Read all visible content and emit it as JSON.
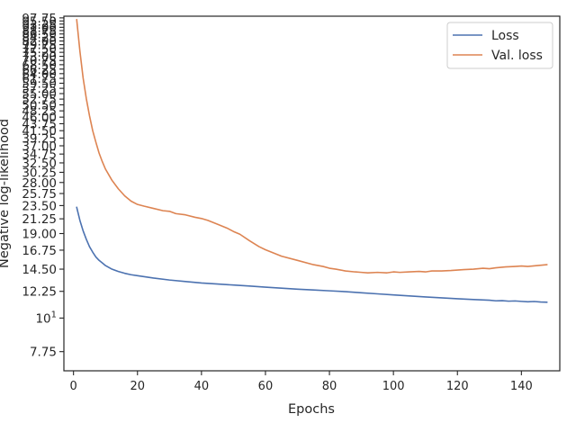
{
  "chart_data": {
    "type": "line",
    "xlabel": "Epochs",
    "ylabel": "Negative log-likelihood",
    "xlim": [
      -3,
      152
    ],
    "ylim": [
      6.7,
      99.0
    ],
    "yscale": "log",
    "legend": "top-right",
    "grid": false,
    "x_ticks": [
      0,
      20,
      40,
      60,
      80,
      100,
      120,
      140
    ],
    "y_ticks": [
      {
        "value": 7.75,
        "label": "7.75"
      },
      {
        "value": 10,
        "label": "10",
        "sup": "1"
      },
      {
        "value": 12.25,
        "label": "12.25"
      },
      {
        "value": 14.5,
        "label": "14.50"
      },
      {
        "value": 16.75,
        "label": "16.75"
      },
      {
        "value": 19.0,
        "label": "19.00"
      },
      {
        "value": 21.25,
        "label": "21.25"
      },
      {
        "value": 23.5,
        "label": "23.50"
      },
      {
        "value": 25.75,
        "label": "25.75"
      },
      {
        "value": 28.0,
        "label": "28.00"
      },
      {
        "value": 30.25,
        "label": "30.25"
      },
      {
        "value": 32.5,
        "label": "32.50"
      },
      {
        "value": 34.75,
        "label": "34.75"
      },
      {
        "value": 37.0,
        "label": "37.00"
      },
      {
        "value": 39.25,
        "label": "39.25"
      },
      {
        "value": 41.5,
        "label": "41.50"
      },
      {
        "value": 43.75,
        "label": "43.75"
      },
      {
        "value": 46.0,
        "label": "46.00"
      },
      {
        "value": 48.25,
        "label": "48.25"
      },
      {
        "value": 50.5,
        "label": "50.50"
      },
      {
        "value": 52.75,
        "label": "52.75"
      },
      {
        "value": 55.0,
        "label": "55.00"
      },
      {
        "value": 57.25,
        "label": "57.25"
      },
      {
        "value": 59.5,
        "label": "59.50"
      },
      {
        "value": 61.75,
        "label": "61.75"
      },
      {
        "value": 64.0,
        "label": "64.00"
      },
      {
        "value": 66.25,
        "label": "66.25"
      },
      {
        "value": 68.5,
        "label": "68.50"
      },
      {
        "value": 70.75,
        "label": "70.75"
      },
      {
        "value": 73.0,
        "label": "73.00"
      },
      {
        "value": 75.25,
        "label": "75.25"
      },
      {
        "value": 77.5,
        "label": "77.50"
      },
      {
        "value": 79.75,
        "label": "79.75"
      },
      {
        "value": 82.0,
        "label": "82.00"
      },
      {
        "value": 84.25,
        "label": "84.25"
      },
      {
        "value": 86.5,
        "label": "86.50"
      },
      {
        "value": 88.75,
        "label": "88.75"
      },
      {
        "value": 91.0,
        "label": "91.00"
      },
      {
        "value": 93.25,
        "label": "93.25"
      },
      {
        "value": 95.5,
        "label": "95.50"
      },
      {
        "value": 97.75,
        "label": "97.75"
      }
    ],
    "series": [
      {
        "name": "Loss",
        "color": "#4c72b0",
        "x": [
          1,
          2,
          3,
          4,
          5,
          6,
          7,
          8,
          9,
          10,
          12,
          14,
          16,
          18,
          20,
          25,
          30,
          35,
          40,
          45,
          50,
          55,
          60,
          65,
          70,
          75,
          80,
          85,
          90,
          95,
          100,
          105,
          110,
          115,
          120,
          125,
          130,
          132,
          134,
          136,
          138,
          140,
          142,
          144,
          146,
          148
        ],
        "y": [
          23.2,
          21.0,
          19.4,
          18.2,
          17.2,
          16.5,
          15.9,
          15.5,
          15.2,
          14.9,
          14.5,
          14.25,
          14.05,
          13.9,
          13.8,
          13.55,
          13.35,
          13.2,
          13.05,
          12.95,
          12.85,
          12.75,
          12.65,
          12.55,
          12.45,
          12.38,
          12.3,
          12.22,
          12.12,
          12.02,
          11.92,
          11.83,
          11.74,
          11.66,
          11.58,
          11.51,
          11.45,
          11.4,
          11.41,
          11.37,
          11.39,
          11.35,
          11.32,
          11.34,
          11.3,
          11.28
        ]
      },
      {
        "name": "Val. loss",
        "color": "#dd8452",
        "x": [
          1,
          2,
          3,
          4,
          5,
          6,
          7,
          8,
          9,
          10,
          12,
          14,
          16,
          18,
          20,
          22,
          25,
          28,
          30,
          32,
          35,
          38,
          40,
          42,
          45,
          48,
          50,
          52,
          55,
          58,
          60,
          65,
          70,
          75,
          78,
          80,
          82,
          85,
          88,
          90,
          92,
          95,
          98,
          100,
          102,
          105,
          108,
          110,
          112,
          115,
          118,
          120,
          122,
          125,
          128,
          130,
          132,
          135,
          138,
          140,
          142,
          145,
          148
        ],
        "y": [
          96.5,
          76.0,
          62.0,
          53.0,
          46.5,
          41.5,
          38.0,
          35.0,
          32.8,
          31.0,
          28.5,
          26.7,
          25.3,
          24.3,
          23.7,
          23.4,
          23.0,
          22.6,
          22.5,
          22.1,
          21.9,
          21.5,
          21.3,
          21.0,
          20.4,
          19.8,
          19.3,
          18.9,
          18.0,
          17.2,
          16.8,
          16.0,
          15.5,
          15.0,
          14.8,
          14.6,
          14.5,
          14.3,
          14.2,
          14.15,
          14.1,
          14.15,
          14.1,
          14.2,
          14.15,
          14.2,
          14.25,
          14.2,
          14.3,
          14.3,
          14.35,
          14.4,
          14.45,
          14.5,
          14.6,
          14.55,
          14.65,
          14.75,
          14.8,
          14.85,
          14.8,
          14.9,
          15.0
        ]
      }
    ]
  }
}
